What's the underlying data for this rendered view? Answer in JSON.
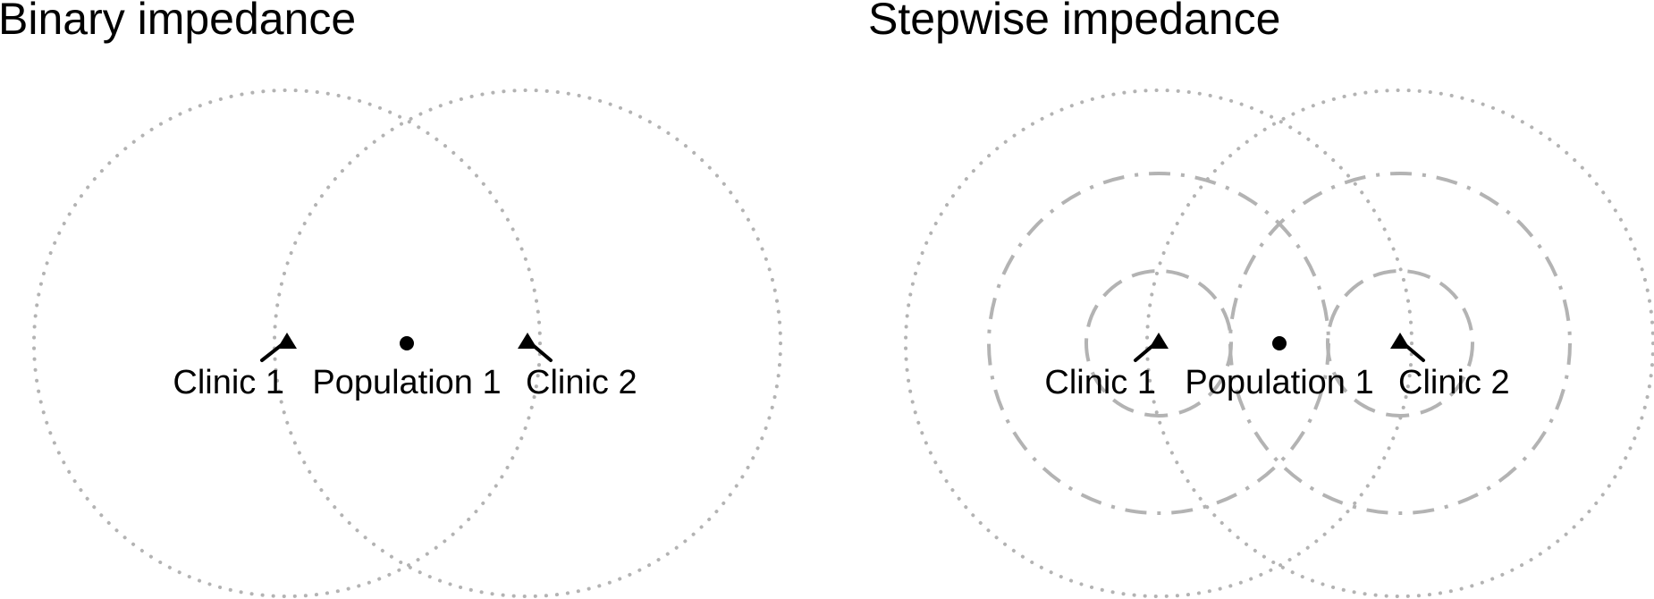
{
  "panels": [
    {
      "title": "Binary impedance",
      "clinic_1_label": "Clinic 1",
      "clinic_2_label": "Clinic 2",
      "population_label": "Population 1"
    },
    {
      "title": "Stepwise impedance",
      "clinic_1_label": "Clinic 1",
      "clinic_2_label": "Clinic 2",
      "population_label": "Population 1"
    }
  ],
  "colors": {
    "catchment_ring": "#b3b3b3",
    "marker": "#000000"
  },
  "icons": {
    "clinic": "clinic-marker-icon",
    "population": "population-point-icon"
  }
}
